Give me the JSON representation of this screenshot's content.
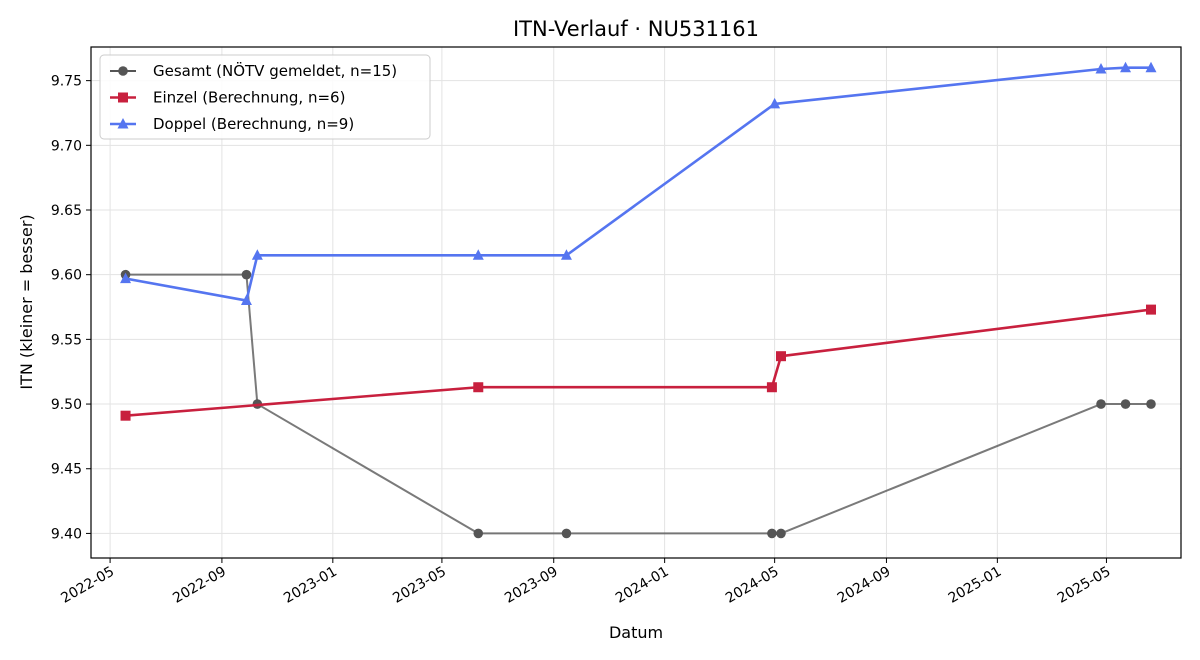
{
  "chart_data": {
    "type": "line",
    "title": "ITN-Verlauf · NU531161",
    "xlabel": "Datum",
    "ylabel": "ITN  (kleiner = besser)",
    "x_ticks": [
      "2022-05",
      "2022-09",
      "2023-01",
      "2023-05",
      "2023-09",
      "2024-01",
      "2024-05",
      "2024-09",
      "2025-01",
      "2025-05"
    ],
    "y_ticks": [
      "9.40",
      "9.45",
      "9.50",
      "9.55",
      "9.60",
      "9.65",
      "9.70",
      "9.75"
    ],
    "xlim": [
      "2022-04-10",
      "2025-07-22"
    ],
    "ylim": [
      9.381,
      9.776
    ],
    "grid": true,
    "legend_position": "top-left",
    "series": [
      {
        "name": "Gesamt (NÖTV gemeldet, n=15)",
        "color": "#555555",
        "marker": "circle",
        "points": [
          {
            "x": "2022-05-18",
            "y": 9.6
          },
          {
            "x": "2022-09-28",
            "y": 9.6
          },
          {
            "x": "2022-10-10",
            "y": 9.5
          },
          {
            "x": "2023-06-10",
            "y": 9.4
          },
          {
            "x": "2023-09-15",
            "y": 9.4
          },
          {
            "x": "2024-04-28",
            "y": 9.4
          },
          {
            "x": "2024-05-08",
            "y": 9.4
          },
          {
            "x": "2025-04-25",
            "y": 9.5
          },
          {
            "x": "2025-05-22",
            "y": 9.5
          },
          {
            "x": "2025-06-19",
            "y": 9.5
          }
        ]
      },
      {
        "name": "Einzel (Berechnung, n=6)",
        "color": "#c8203e",
        "marker": "square",
        "points": [
          {
            "x": "2022-05-18",
            "y": 9.491
          },
          {
            "x": "2023-06-10",
            "y": 9.513
          },
          {
            "x": "2024-04-28",
            "y": 9.513
          },
          {
            "x": "2024-05-08",
            "y": 9.537
          },
          {
            "x": "2025-06-19",
            "y": 9.573
          }
        ]
      },
      {
        "name": "Doppel (Berechnung, n=9)",
        "color": "#5575f0",
        "marker": "triangle",
        "points": [
          {
            "x": "2022-05-18",
            "y": 9.597
          },
          {
            "x": "2022-09-28",
            "y": 9.58
          },
          {
            "x": "2022-10-10",
            "y": 9.615
          },
          {
            "x": "2023-06-10",
            "y": 9.615
          },
          {
            "x": "2023-09-15",
            "y": 9.615
          },
          {
            "x": "2024-05-01",
            "y": 9.732
          },
          {
            "x": "2025-04-25",
            "y": 9.759
          },
          {
            "x": "2025-05-22",
            "y": 9.76
          },
          {
            "x": "2025-06-19",
            "y": 9.76
          }
        ]
      }
    ]
  }
}
